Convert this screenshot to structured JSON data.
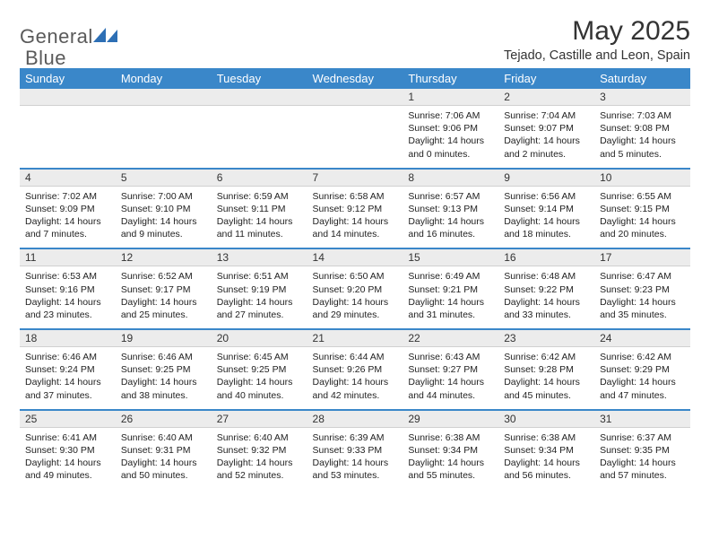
{
  "brand": {
    "name_part1": "General",
    "name_part2": "Blue",
    "text_color_gray": "#5a5a5a",
    "text_color_blue": "#2d6fb5",
    "icon_color": "#2d6fb5"
  },
  "header": {
    "title": "May 2025",
    "location": "Tejado, Castille and Leon, Spain"
  },
  "colors": {
    "header_row_bg": "#3a87c9",
    "header_row_text": "#ffffff",
    "daynum_bg": "#ececec",
    "week_divider": "#3a87c9",
    "background": "#ffffff"
  },
  "typography": {
    "title_fontsize": 30,
    "subtitle_fontsize": 14.5,
    "dayheader_fontsize": 13,
    "daynum_fontsize": 12,
    "detail_fontsize": 10.5
  },
  "days_of_week": [
    "Sunday",
    "Monday",
    "Tuesday",
    "Wednesday",
    "Thursday",
    "Friday",
    "Saturday"
  ],
  "weeks": [
    {
      "nums": [
        "",
        "",
        "",
        "",
        "1",
        "2",
        "3"
      ],
      "sunrise": [
        "",
        "",
        "",
        "",
        "Sunrise: 7:06 AM",
        "Sunrise: 7:04 AM",
        "Sunrise: 7:03 AM"
      ],
      "sunset": [
        "",
        "",
        "",
        "",
        "Sunset: 9:06 PM",
        "Sunset: 9:07 PM",
        "Sunset: 9:08 PM"
      ],
      "day_a": [
        "",
        "",
        "",
        "",
        "Daylight: 14 hours",
        "Daylight: 14 hours",
        "Daylight: 14 hours"
      ],
      "day_b": [
        "",
        "",
        "",
        "",
        "and 0 minutes.",
        "and 2 minutes.",
        "and 5 minutes."
      ]
    },
    {
      "nums": [
        "4",
        "5",
        "6",
        "7",
        "8",
        "9",
        "10"
      ],
      "sunrise": [
        "Sunrise: 7:02 AM",
        "Sunrise: 7:00 AM",
        "Sunrise: 6:59 AM",
        "Sunrise: 6:58 AM",
        "Sunrise: 6:57 AM",
        "Sunrise: 6:56 AM",
        "Sunrise: 6:55 AM"
      ],
      "sunset": [
        "Sunset: 9:09 PM",
        "Sunset: 9:10 PM",
        "Sunset: 9:11 PM",
        "Sunset: 9:12 PM",
        "Sunset: 9:13 PM",
        "Sunset: 9:14 PM",
        "Sunset: 9:15 PM"
      ],
      "day_a": [
        "Daylight: 14 hours",
        "Daylight: 14 hours",
        "Daylight: 14 hours",
        "Daylight: 14 hours",
        "Daylight: 14 hours",
        "Daylight: 14 hours",
        "Daylight: 14 hours"
      ],
      "day_b": [
        "and 7 minutes.",
        "and 9 minutes.",
        "and 11 minutes.",
        "and 14 minutes.",
        "and 16 minutes.",
        "and 18 minutes.",
        "and 20 minutes."
      ]
    },
    {
      "nums": [
        "11",
        "12",
        "13",
        "14",
        "15",
        "16",
        "17"
      ],
      "sunrise": [
        "Sunrise: 6:53 AM",
        "Sunrise: 6:52 AM",
        "Sunrise: 6:51 AM",
        "Sunrise: 6:50 AM",
        "Sunrise: 6:49 AM",
        "Sunrise: 6:48 AM",
        "Sunrise: 6:47 AM"
      ],
      "sunset": [
        "Sunset: 9:16 PM",
        "Sunset: 9:17 PM",
        "Sunset: 9:19 PM",
        "Sunset: 9:20 PM",
        "Sunset: 9:21 PM",
        "Sunset: 9:22 PM",
        "Sunset: 9:23 PM"
      ],
      "day_a": [
        "Daylight: 14 hours",
        "Daylight: 14 hours",
        "Daylight: 14 hours",
        "Daylight: 14 hours",
        "Daylight: 14 hours",
        "Daylight: 14 hours",
        "Daylight: 14 hours"
      ],
      "day_b": [
        "and 23 minutes.",
        "and 25 minutes.",
        "and 27 minutes.",
        "and 29 minutes.",
        "and 31 minutes.",
        "and 33 minutes.",
        "and 35 minutes."
      ]
    },
    {
      "nums": [
        "18",
        "19",
        "20",
        "21",
        "22",
        "23",
        "24"
      ],
      "sunrise": [
        "Sunrise: 6:46 AM",
        "Sunrise: 6:46 AM",
        "Sunrise: 6:45 AM",
        "Sunrise: 6:44 AM",
        "Sunrise: 6:43 AM",
        "Sunrise: 6:42 AM",
        "Sunrise: 6:42 AM"
      ],
      "sunset": [
        "Sunset: 9:24 PM",
        "Sunset: 9:25 PM",
        "Sunset: 9:25 PM",
        "Sunset: 9:26 PM",
        "Sunset: 9:27 PM",
        "Sunset: 9:28 PM",
        "Sunset: 9:29 PM"
      ],
      "day_a": [
        "Daylight: 14 hours",
        "Daylight: 14 hours",
        "Daylight: 14 hours",
        "Daylight: 14 hours",
        "Daylight: 14 hours",
        "Daylight: 14 hours",
        "Daylight: 14 hours"
      ],
      "day_b": [
        "and 37 minutes.",
        "and 38 minutes.",
        "and 40 minutes.",
        "and 42 minutes.",
        "and 44 minutes.",
        "and 45 minutes.",
        "and 47 minutes."
      ]
    },
    {
      "nums": [
        "25",
        "26",
        "27",
        "28",
        "29",
        "30",
        "31"
      ],
      "sunrise": [
        "Sunrise: 6:41 AM",
        "Sunrise: 6:40 AM",
        "Sunrise: 6:40 AM",
        "Sunrise: 6:39 AM",
        "Sunrise: 6:38 AM",
        "Sunrise: 6:38 AM",
        "Sunrise: 6:37 AM"
      ],
      "sunset": [
        "Sunset: 9:30 PM",
        "Sunset: 9:31 PM",
        "Sunset: 9:32 PM",
        "Sunset: 9:33 PM",
        "Sunset: 9:34 PM",
        "Sunset: 9:34 PM",
        "Sunset: 9:35 PM"
      ],
      "day_a": [
        "Daylight: 14 hours",
        "Daylight: 14 hours",
        "Daylight: 14 hours",
        "Daylight: 14 hours",
        "Daylight: 14 hours",
        "Daylight: 14 hours",
        "Daylight: 14 hours"
      ],
      "day_b": [
        "and 49 minutes.",
        "and 50 minutes.",
        "and 52 minutes.",
        "and 53 minutes.",
        "and 55 minutes.",
        "and 56 minutes.",
        "and 57 minutes."
      ]
    }
  ]
}
